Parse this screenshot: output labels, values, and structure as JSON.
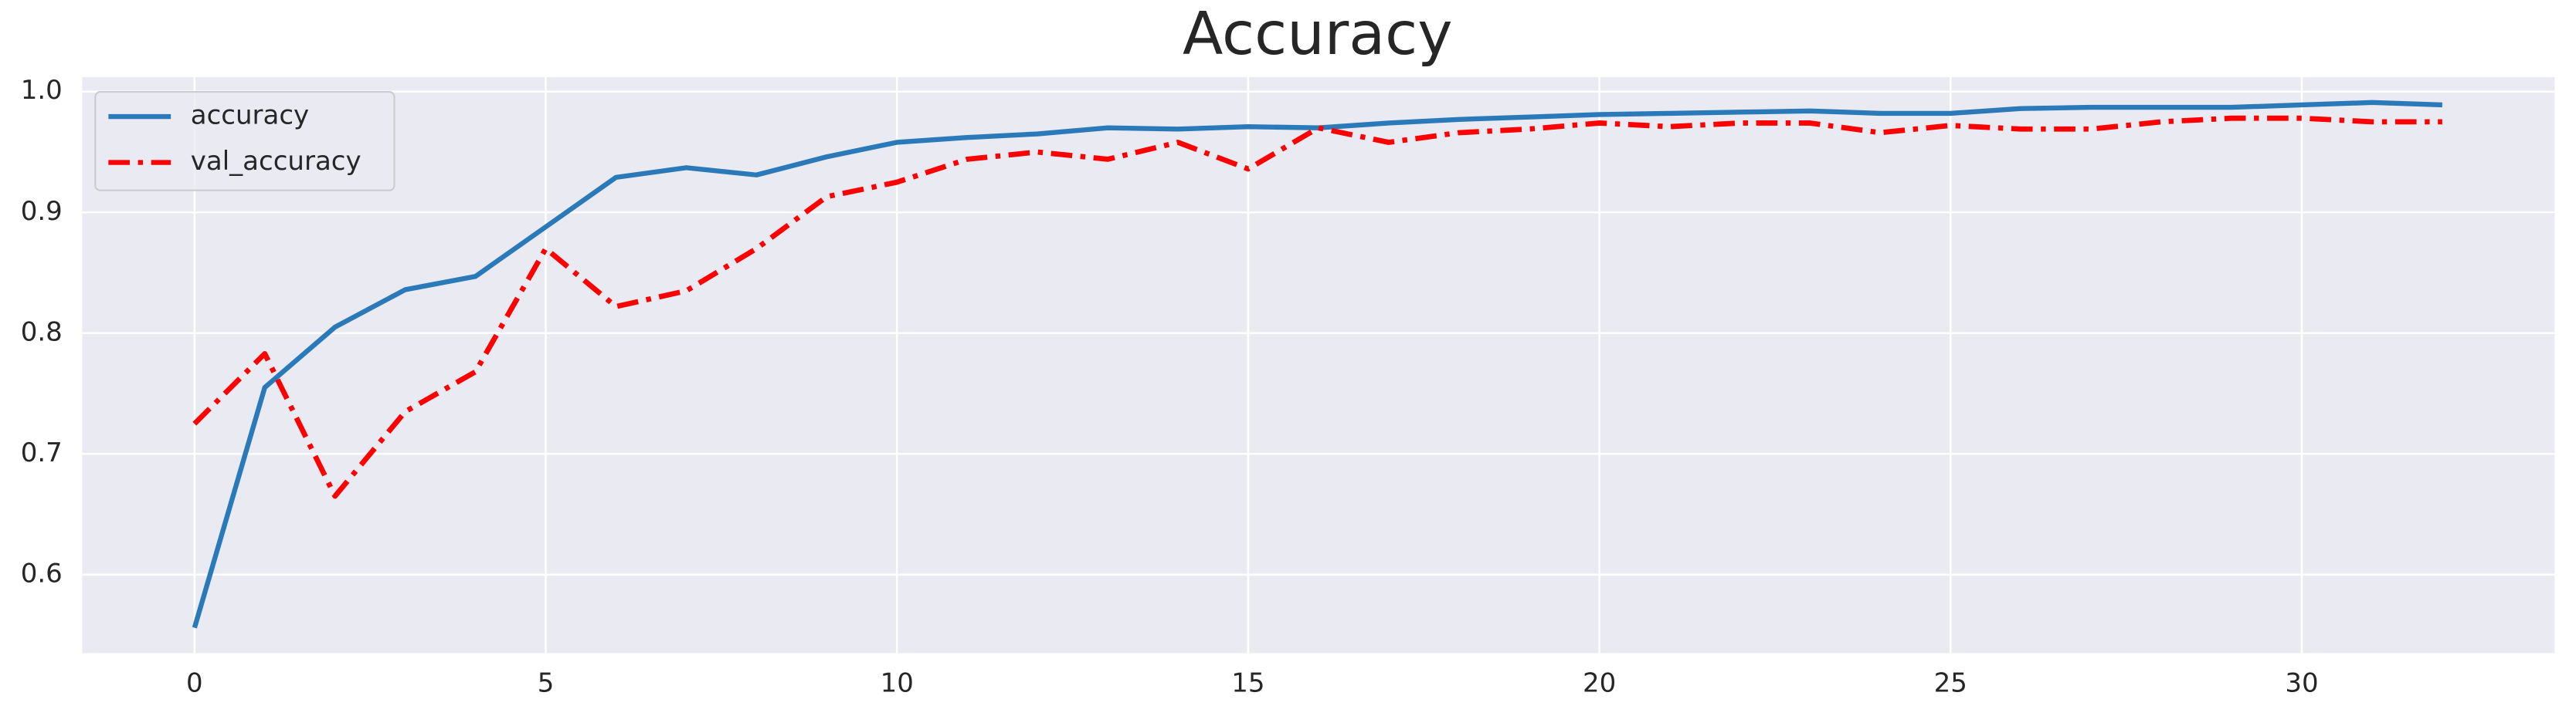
{
  "chart_data": {
    "type": "line",
    "title": "Accuracy",
    "x": [
      0,
      1,
      2,
      3,
      4,
      5,
      6,
      7,
      8,
      9,
      10,
      11,
      12,
      13,
      14,
      15,
      16,
      17,
      18,
      19,
      20,
      21,
      22,
      23,
      24,
      25,
      26,
      27,
      28,
      29,
      30,
      31,
      32
    ],
    "series": [
      {
        "name": "accuracy",
        "color": "#2a7ab9",
        "dash": "solid",
        "values": [
          0.556,
          0.755,
          0.805,
          0.836,
          0.847,
          0.888,
          0.929,
          0.937,
          0.931,
          0.946,
          0.958,
          0.962,
          0.965,
          0.97,
          0.969,
          0.971,
          0.97,
          0.974,
          0.977,
          0.979,
          0.981,
          0.982,
          0.983,
          0.984,
          0.982,
          0.982,
          0.986,
          0.987,
          0.987,
          0.987,
          0.989,
          0.991,
          0.989
        ]
      },
      {
        "name": "val_accuracy",
        "color": "#ff0000",
        "dash": "dashdot",
        "values": [
          0.725,
          0.783,
          0.665,
          0.735,
          0.768,
          0.87,
          0.822,
          0.835,
          0.87,
          0.913,
          0.925,
          0.944,
          0.95,
          0.944,
          0.958,
          0.936,
          0.97,
          0.958,
          0.966,
          0.969,
          0.974,
          0.971,
          0.974,
          0.974,
          0.966,
          0.972,
          0.969,
          0.969,
          0.975,
          0.978,
          0.978,
          0.975,
          0.975
        ]
      }
    ],
    "xlim": [
      -1.6,
      33.6
    ],
    "xticks": [
      0,
      5,
      10,
      15,
      20,
      25,
      30
    ],
    "ylim": [
      0.535,
      1.012
    ],
    "yticks": [
      0.6,
      0.7,
      0.8,
      0.9,
      {
        "value": 1.0,
        "label": "1.0"
      }
    ],
    "grid": true,
    "legend": "upper left"
  }
}
